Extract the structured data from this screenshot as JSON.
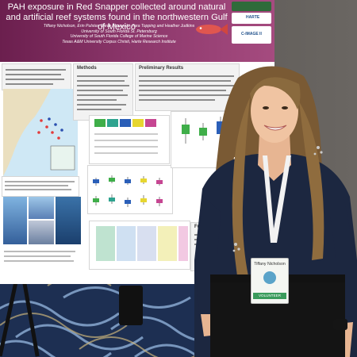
{
  "poster": {
    "title": "PAH exposure in Red Snapper collected around natural and artificial reef systems found in the northwestern Gulf of Mexico",
    "authors": "Tiffany Nicholson, Erin Pulster, Steve Murawski, Tara Topping and Heather Judkins",
    "affiliation1": "University of South Florida St. Petersburg",
    "affiliation2": "University of South Florida College of Marine Science",
    "affiliation3": "Texas A&M University Corpus Christi, Harte Research Institute",
    "logo_harte": "HARTE",
    "logo_image": "C-IMAGE II",
    "section_methods": "Methods",
    "section_results": "Preliminary Results",
    "section_future": "Future"
  },
  "badge": {
    "name": "Tiffany Nicholson",
    "role": "VOLUNTEER"
  },
  "colors": {
    "banner": "#8a3569",
    "floor": "#1d2f52",
    "shirt": "#1c2740",
    "hair": "#7a5a34"
  }
}
